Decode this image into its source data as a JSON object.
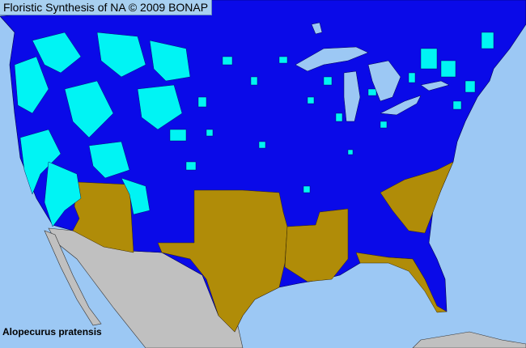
{
  "header": {
    "title": "Floristic Synthesis of NA © 2009 BONAP"
  },
  "map": {
    "species": "Alopecurus pratensis",
    "region": "United States county distribution",
    "colors": {
      "ocean": "#9cc8f4",
      "present_blue": "#0a0ae8",
      "county_cyan": "#00f4f4",
      "state_olive": "#b08c08",
      "non_us_gray": "#c0c0c0",
      "borders": "#000050"
    }
  }
}
